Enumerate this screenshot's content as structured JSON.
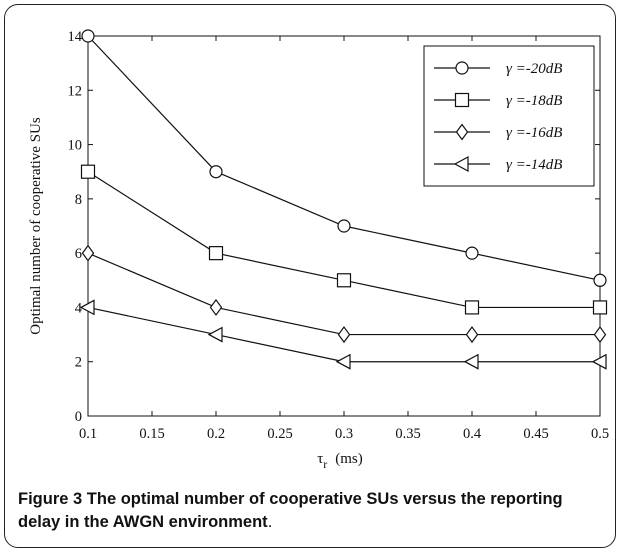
{
  "chart_data": {
    "type": "line",
    "x": [
      0.1,
      0.2,
      0.3,
      0.4,
      0.5
    ],
    "xlabel_main": "τ",
    "xlabel_sub": "r",
    "xlabel_unit": "(ms)",
    "ylabel": "Optimal number of cooperative SUs",
    "xlim": [
      0.1,
      0.5
    ],
    "ylim": [
      0,
      14
    ],
    "xticks": [
      0.1,
      0.15,
      0.2,
      0.25,
      0.3,
      0.35,
      0.4,
      0.45,
      0.5
    ],
    "xtick_labels": [
      "0.1",
      "0.15",
      "0.2",
      "0.25",
      "0.3",
      "0.35",
      "0.4",
      "0.45",
      "0.5"
    ],
    "yticks": [
      0,
      2,
      4,
      6,
      8,
      10,
      12,
      14
    ],
    "ytick_labels": [
      "0",
      "2",
      "4",
      "6",
      "8",
      "10",
      "12",
      "14"
    ],
    "grid": false,
    "legend_position": "top-right",
    "series": [
      {
        "name": "γ =-20dB",
        "marker": "circle",
        "values": [
          14,
          9,
          7,
          6,
          5
        ]
      },
      {
        "name": "γ =-18dB",
        "marker": "square",
        "values": [
          9,
          6,
          5,
          4,
          4
        ]
      },
      {
        "name": "γ =-16dB",
        "marker": "diamond",
        "values": [
          6,
          4,
          3,
          3,
          3
        ]
      },
      {
        "name": "γ =-14dB",
        "marker": "triangle-left",
        "values": [
          4,
          3,
          2,
          2,
          2
        ]
      }
    ]
  },
  "caption": {
    "label": "Figure 3",
    "text": "The optimal number of cooperative SUs versus the reporting delay in the AWGN environment",
    "period": "."
  }
}
